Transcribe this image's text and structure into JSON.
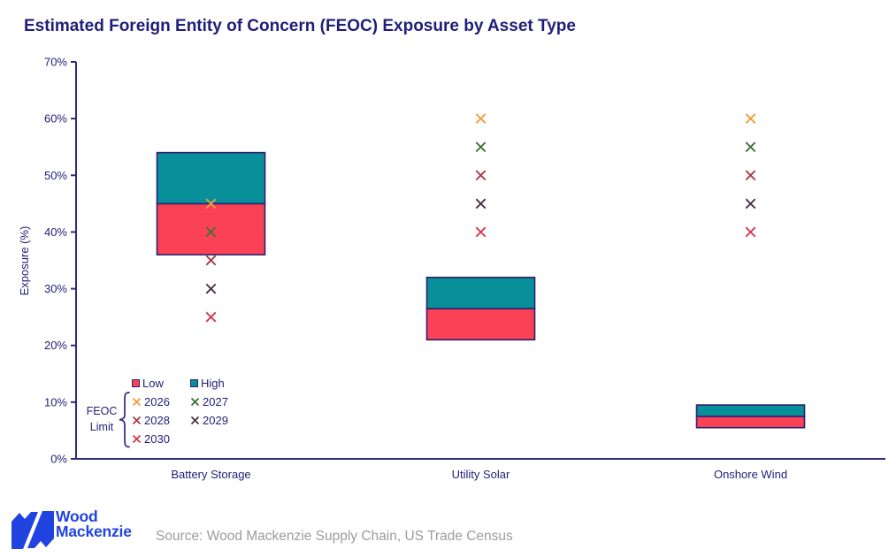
{
  "colors": {
    "navy": "#201e78",
    "axis": "#2e2a80",
    "bar_border": "#2c2070",
    "logo_blue": "#2143df",
    "source_gray": "#9c9c9c"
  },
  "chart_data": {
    "type": "bar",
    "subtype": "stacked-range-columns-with-x-markers",
    "title": "Estimated Foreign Entity of Concern (FEOC) Exposure by Asset Type",
    "xlabel": "",
    "ylabel": "Exposure (%)",
    "ylim": [
      0,
      70
    ],
    "yticks": [
      0,
      10,
      20,
      30,
      40,
      50,
      60,
      70
    ],
    "ytick_labels": [
      "0%",
      "10%",
      "20%",
      "30%",
      "40%",
      "50%",
      "60%",
      "70%"
    ],
    "grid": false,
    "legend_position": "bottom-left",
    "categories": [
      "Battery Storage",
      "Utility Solar",
      "Onshore Wind"
    ],
    "series": [
      {
        "name": "Low",
        "color": "#fa4156",
        "ranges": [
          [
            36,
            45
          ],
          [
            21,
            26.5
          ],
          [
            5.5,
            7.5
          ]
        ]
      },
      {
        "name": "High",
        "color": "#07909a",
        "ranges": [
          [
            45,
            54
          ],
          [
            26.5,
            32
          ],
          [
            7.5,
            9.5
          ]
        ]
      }
    ],
    "marker_group_label": "FEOC Limit",
    "marker_shape": "x",
    "markers": [
      {
        "name": "2026",
        "color": "#ef9d3e",
        "values": [
          45,
          60,
          60
        ]
      },
      {
        "name": "2027",
        "color": "#3f6f39",
        "values": [
          40,
          55,
          55
        ]
      },
      {
        "name": "2028",
        "color": "#a73b4b",
        "values": [
          35,
          50,
          50
        ]
      },
      {
        "name": "2029",
        "color": "#4a3347",
        "values": [
          30,
          45,
          45
        ]
      },
      {
        "name": "2030",
        "color": "#d1394a",
        "values": [
          25,
          40,
          40
        ]
      }
    ]
  },
  "footer": {
    "brand_line1": "Wood",
    "brand_line2": "Mackenzie",
    "source": "Source: Wood Mackenzie Supply Chain, US Trade Census"
  }
}
